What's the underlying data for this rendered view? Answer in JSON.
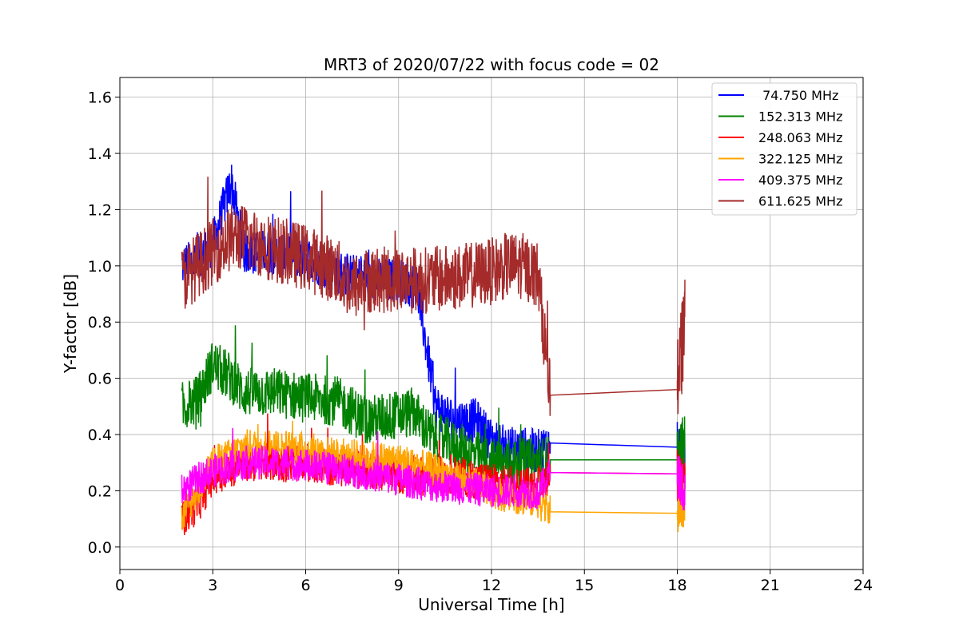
{
  "chart_data": {
    "type": "line",
    "title": "MRT3 of 2020/07/22 with focus code = 02",
    "xlabel": "Universal Time [h]",
    "ylabel": "Y-factor [dB]",
    "xlim": [
      0,
      24
    ],
    "ylim": [
      -0.08,
      1.67
    ],
    "xticks": [
      0,
      3,
      6,
      9,
      12,
      15,
      18,
      21,
      24
    ],
    "xtick_labels": [
      "0",
      "3",
      "6",
      "9",
      "12",
      "15",
      "18",
      "21",
      "24"
    ],
    "yticks": [
      0.0,
      0.2,
      0.4,
      0.6,
      0.8,
      1.0,
      1.2,
      1.4,
      1.6
    ],
    "ytick_labels": [
      "0.0",
      "0.2",
      "0.4",
      "0.6",
      "0.8",
      "1.0",
      "1.2",
      "1.4",
      "1.6"
    ],
    "grid": true,
    "legend_position": "top-right",
    "series": [
      {
        "name": " 74.750 MHz",
        "color": "#0000ff",
        "x": [
          2.0,
          2.5,
          3.0,
          3.6,
          4.0,
          5.0,
          6.0,
          7.0,
          8.0,
          9.0,
          9.6,
          10.2,
          10.8,
          11.5,
          12.0,
          12.5,
          13.0,
          13.5,
          13.9,
          18.0,
          18.25
        ],
        "y": [
          1.0,
          1.02,
          1.08,
          1.3,
          1.05,
          1.05,
          1.03,
          0.98,
          0.95,
          0.95,
          0.92,
          0.5,
          0.45,
          0.45,
          0.38,
          0.35,
          0.35,
          0.34,
          0.37,
          0.355,
          0.3
        ]
      },
      {
        "name": "152.313 MHz",
        "color": "#008000",
        "x": [
          2.0,
          2.5,
          3.0,
          3.6,
          4.0,
          5.0,
          6.0,
          7.0,
          8.0,
          9.0,
          9.5,
          10.0,
          11.0,
          12.0,
          12.5,
          13.0,
          13.5,
          13.9,
          18.0,
          18.25
        ],
        "y": [
          0.5,
          0.52,
          0.65,
          0.6,
          0.55,
          0.55,
          0.53,
          0.52,
          0.45,
          0.47,
          0.48,
          0.4,
          0.35,
          0.3,
          0.3,
          0.3,
          0.3,
          0.31,
          0.31,
          0.35
        ]
      },
      {
        "name": "248.063 MHz",
        "color": "#ff0000",
        "x": [
          2.0,
          2.5,
          3.0,
          3.6,
          4.0,
          5.0,
          6.0,
          7.0,
          8.0,
          9.0,
          10.0,
          10.7,
          11.5,
          12.0,
          12.5,
          13.0,
          13.5,
          13.9,
          18.0,
          18.25
        ],
        "y": [
          0.1,
          0.15,
          0.25,
          0.28,
          0.3,
          0.3,
          0.3,
          0.28,
          0.28,
          0.26,
          0.25,
          0.26,
          0.24,
          0.23,
          0.22,
          0.22,
          0.21,
          0.265,
          0.26,
          0.2
        ]
      },
      {
        "name": "322.125 MHz",
        "color": "#ffa500",
        "x": [
          2.0,
          2.5,
          3.0,
          3.6,
          4.0,
          5.0,
          6.0,
          7.0,
          8.0,
          9.0,
          10.0,
          11.0,
          12.0,
          12.5,
          13.0,
          13.5,
          13.9,
          18.0,
          18.25
        ],
        "y": [
          0.1,
          0.2,
          0.3,
          0.33,
          0.36,
          0.36,
          0.35,
          0.33,
          0.32,
          0.31,
          0.28,
          0.24,
          0.2,
          0.18,
          0.17,
          0.16,
          0.125,
          0.12,
          0.15
        ]
      },
      {
        "name": "409.375 MHz",
        "color": "#ff00ff",
        "x": [
          2.0,
          2.5,
          3.0,
          3.6,
          4.0,
          5.0,
          6.0,
          7.0,
          8.0,
          9.0,
          10.0,
          11.0,
          12.0,
          12.5,
          13.0,
          13.5,
          13.9,
          18.0,
          18.25
        ],
        "y": [
          0.2,
          0.24,
          0.27,
          0.29,
          0.3,
          0.3,
          0.29,
          0.28,
          0.26,
          0.24,
          0.22,
          0.21,
          0.2,
          0.2,
          0.2,
          0.19,
          0.265,
          0.26,
          0.2
        ]
      },
      {
        "name": "611.625 MHz",
        "color": "#a52a2a",
        "x": [
          2.0,
          2.5,
          3.0,
          3.6,
          4.0,
          5.0,
          6.0,
          7.0,
          7.5,
          8.0,
          9.0,
          10.0,
          11.0,
          12.0,
          12.5,
          13.0,
          13.5,
          13.9,
          18.0,
          18.25
        ],
        "y": [
          0.95,
          1.0,
          1.05,
          1.1,
          1.1,
          1.06,
          1.03,
          0.98,
          0.92,
          0.95,
          0.95,
          0.95,
          0.96,
          0.98,
          1.0,
          1.0,
          0.97,
          0.54,
          0.56,
          0.8
        ]
      }
    ]
  }
}
